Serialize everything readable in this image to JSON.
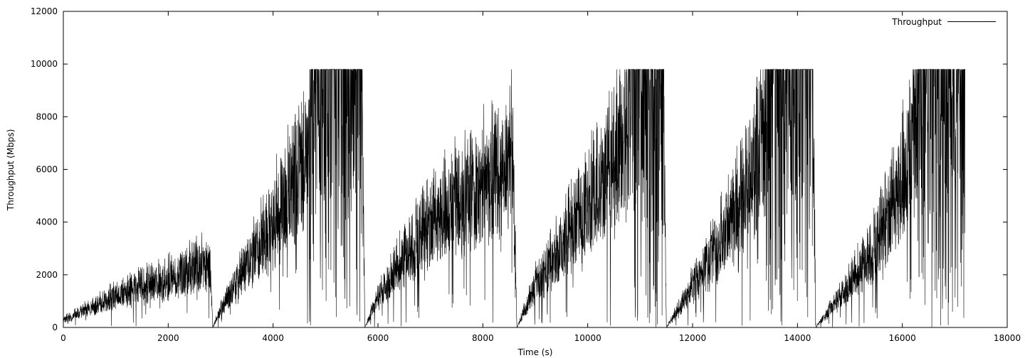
{
  "chart_data": {
    "type": "line",
    "title": "",
    "xlabel": "Time (s)",
    "ylabel": "Throughput (Mbps)",
    "xlim": [
      0,
      18000
    ],
    "ylim": [
      0,
      12000
    ],
    "xticks": [
      0,
      2000,
      4000,
      6000,
      8000,
      10000,
      12000,
      14000,
      16000,
      18000
    ],
    "yticks": [
      0,
      2000,
      4000,
      6000,
      8000,
      10000,
      12000
    ],
    "grid": false,
    "legend_position": "top-right",
    "series": [
      {
        "name": "Throughput",
        "color": "#000000",
        "description_points": {
          "x": [
            0,
            500,
            1000,
            1500,
            2000,
            2500,
            2800,
            2850,
            3000,
            3500,
            4000,
            4500,
            4700,
            5000,
            5500,
            5700,
            5750,
            6000,
            6500,
            7000,
            7500,
            8000,
            8500,
            8580,
            8650,
            9000,
            9500,
            10000,
            10500,
            10800,
            11000,
            11450,
            11500,
            12000,
            12500,
            13000,
            13400,
            13800,
            14300,
            14350,
            14800,
            15500,
            16000,
            16300,
            16800,
            17200
          ],
          "y": [
            400,
            900,
            1500,
            2000,
            2300,
            2900,
            3000,
            0,
            900,
            3000,
            5000,
            7500,
            9800,
            9800,
            9800,
            9800,
            0,
            1500,
            3500,
            5000,
            6000,
            7000,
            8000,
            8200,
            0,
            2000,
            4000,
            6000,
            8500,
            9800,
            9800,
            9800,
            0,
            2000,
            4000,
            6500,
            9800,
            9800,
            9800,
            0,
            1500,
            4000,
            7000,
            9800,
            9800,
            9800
          ]
        }
      }
    ]
  }
}
